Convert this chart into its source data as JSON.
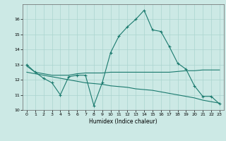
{
  "xlabel": "Humidex (Indice chaleur)",
  "bg_color": "#cce9e5",
  "grid_color": "#aad4cf",
  "line_color": "#1a7a6e",
  "line1": {
    "x": [
      0,
      1,
      2,
      3,
      4,
      5,
      6,
      7,
      8,
      9,
      10,
      11,
      12,
      13,
      14,
      15,
      16,
      17,
      18,
      19,
      20,
      21,
      22,
      23
    ],
    "y": [
      13.0,
      12.5,
      12.1,
      11.8,
      11.0,
      12.2,
      12.3,
      12.3,
      10.3,
      11.8,
      13.8,
      14.9,
      15.5,
      16.0,
      16.6,
      15.3,
      15.2,
      14.2,
      13.1,
      12.7,
      11.6,
      10.9,
      10.9,
      10.4
    ]
  },
  "line2": {
    "x": [
      0,
      1,
      2,
      3,
      4,
      5,
      6,
      7,
      8,
      9,
      10,
      11,
      12,
      13,
      14,
      15,
      16,
      17,
      18,
      19,
      20,
      21,
      22,
      23
    ],
    "y": [
      12.9,
      12.5,
      12.4,
      12.3,
      12.3,
      12.3,
      12.4,
      12.45,
      12.45,
      12.45,
      12.5,
      12.5,
      12.5,
      12.5,
      12.5,
      12.5,
      12.5,
      12.5,
      12.55,
      12.6,
      12.6,
      12.65,
      12.65,
      12.65
    ]
  },
  "line3": {
    "x": [
      0,
      1,
      2,
      3,
      4,
      5,
      6,
      7,
      8,
      9,
      10,
      11,
      12,
      13,
      14,
      15,
      16,
      17,
      18,
      19,
      20,
      21,
      22,
      23
    ],
    "y": [
      12.5,
      12.4,
      12.3,
      12.2,
      12.1,
      12.0,
      11.9,
      11.8,
      11.75,
      11.7,
      11.6,
      11.55,
      11.5,
      11.4,
      11.35,
      11.3,
      11.2,
      11.1,
      11.0,
      10.9,
      10.8,
      10.65,
      10.55,
      10.45
    ]
  },
  "ylim": [
    10,
    17
  ],
  "yticks": [
    10,
    11,
    12,
    13,
    14,
    15,
    16
  ],
  "xticks": [
    0,
    1,
    2,
    3,
    4,
    5,
    6,
    7,
    8,
    9,
    10,
    11,
    12,
    13,
    14,
    15,
    16,
    17,
    18,
    19,
    20,
    21,
    22,
    23
  ]
}
